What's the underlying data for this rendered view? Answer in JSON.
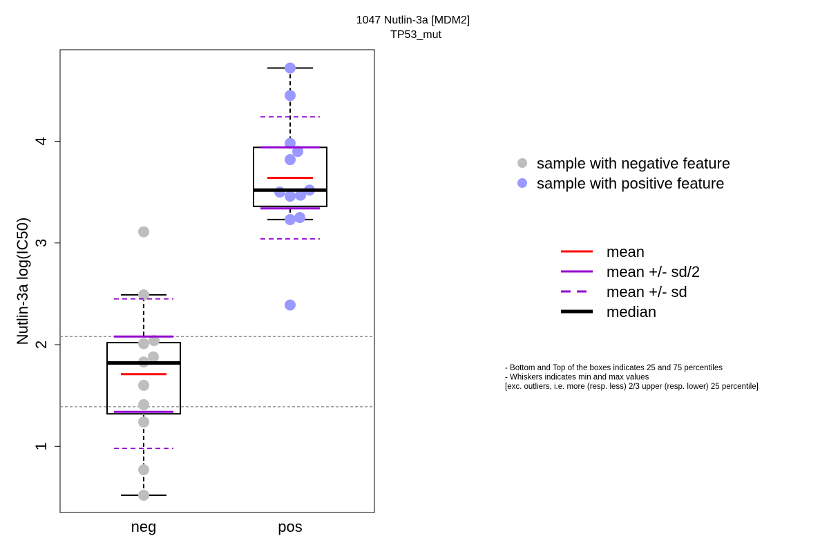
{
  "chart_data": {
    "type": "box",
    "title": "1047 Nutlin-3a [MDM2]",
    "subtitle": "TP53_mut",
    "ylabel": "Nutlin-3a log(IC50)",
    "xlabel": "",
    "ylim": [
      0.35,
      4.9
    ],
    "yticks": [
      1,
      2,
      3,
      4
    ],
    "categories": [
      "neg",
      "pos"
    ],
    "grid": false,
    "reference_lines": [
      2.08,
      1.39
    ],
    "groups": [
      {
        "name": "neg",
        "color": "#bebebe",
        "box": {
          "q1": 1.32,
          "median": 1.82,
          "q3": 2.02,
          "whisker_low": 0.52,
          "whisker_high": 2.49
        },
        "mean": 1.71,
        "mean_minus_half_sd": 1.34,
        "mean_plus_half_sd": 2.08,
        "mean_minus_sd": 0.98,
        "mean_plus_sd": 2.45,
        "points": [
          {
            "x": 0.0,
            "y": 3.11
          },
          {
            "x": 0.0,
            "y": 2.49
          },
          {
            "x": 0.15,
            "y": 2.04
          },
          {
            "x": 0.0,
            "y": 2.01
          },
          {
            "x": 0.14,
            "y": 1.88
          },
          {
            "x": 0.0,
            "y": 1.83
          },
          {
            "x": 0.0,
            "y": 1.6
          },
          {
            "x": 0.0,
            "y": 1.41
          },
          {
            "x": 0.0,
            "y": 1.24
          },
          {
            "x": 0.0,
            "y": 0.77
          },
          {
            "x": 0.0,
            "y": 0.52
          }
        ]
      },
      {
        "name": "pos",
        "color": "#9999ff",
        "box": {
          "q1": 3.36,
          "median": 3.52,
          "q3": 3.94,
          "whisker_low": 3.23,
          "whisker_high": 4.72
        },
        "mean": 3.64,
        "mean_minus_half_sd": 3.34,
        "mean_plus_half_sd": 3.94,
        "mean_minus_sd": 3.04,
        "mean_plus_sd": 4.24,
        "points": [
          {
            "x": 0.0,
            "y": 4.72
          },
          {
            "x": 0.0,
            "y": 4.45
          },
          {
            "x": 0.0,
            "y": 3.98
          },
          {
            "x": 0.11,
            "y": 3.9
          },
          {
            "x": 0.0,
            "y": 3.82
          },
          {
            "x": -0.15,
            "y": 3.5
          },
          {
            "x": 0.0,
            "y": 3.46
          },
          {
            "x": 0.15,
            "y": 3.47
          },
          {
            "x": 0.28,
            "y": 3.52
          },
          {
            "x": 0.0,
            "y": 3.23
          },
          {
            "x": 0.14,
            "y": 3.25
          },
          {
            "x": 0.0,
            "y": 2.39
          }
        ]
      }
    ]
  },
  "legend_points": [
    {
      "label": "sample with negative feature",
      "color": "#bebebe"
    },
    {
      "label": "sample with positive feature",
      "color": "#9999ff"
    }
  ],
  "legend_lines": [
    {
      "label": "mean",
      "color": "#ff0000",
      "style": "solid"
    },
    {
      "label": "mean +/- sd/2",
      "color": "#9400d3",
      "style": "solid"
    },
    {
      "label": "mean +/- sd",
      "color": "#9400d3",
      "style": "dashed"
    },
    {
      "label": "median",
      "color": "#000000",
      "style": "thick"
    }
  ],
  "notes": [
    "- Bottom and Top of the boxes indicates 25 and 75 percentiles",
    "- Whiskers indicates min and max values",
    "[exc. outliers, i.e. more (resp. less) 2/3 upper (resp. lower) 25 percentile]"
  ]
}
